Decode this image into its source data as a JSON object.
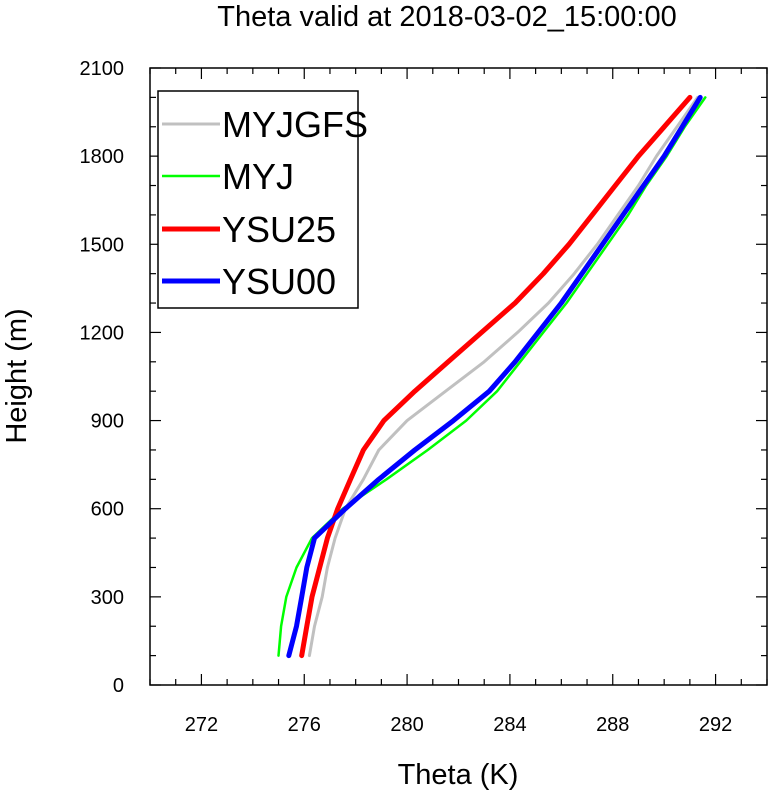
{
  "chart_data": {
    "type": "line",
    "title": "Theta valid at 2018-03-02_15:00:00",
    "xlabel": "Theta (K)",
    "ylabel": "Height (m)",
    "xlim": [
      270,
      294
    ],
    "ylim": [
      0,
      2100
    ],
    "xticks": [
      272,
      276,
      280,
      284,
      288,
      292
    ],
    "yticks": [
      0,
      300,
      600,
      900,
      1200,
      1500,
      1800,
      2100
    ],
    "legend_position": "top-left",
    "grid": false,
    "series": [
      {
        "name": "MYJGFS",
        "color": "#c0c0c0",
        "points": [
          [
            276.2,
            100
          ],
          [
            276.4,
            200
          ],
          [
            276.7,
            300
          ],
          [
            276.9,
            400
          ],
          [
            277.2,
            500
          ],
          [
            277.6,
            600
          ],
          [
            278.3,
            700
          ],
          [
            278.9,
            800
          ],
          [
            280.0,
            900
          ],
          [
            281.5,
            1000
          ],
          [
            283.0,
            1100
          ],
          [
            284.3,
            1200
          ],
          [
            285.5,
            1300
          ],
          [
            286.5,
            1400
          ],
          [
            287.4,
            1500
          ],
          [
            288.2,
            1600
          ],
          [
            289.0,
            1700
          ],
          [
            289.7,
            1800
          ],
          [
            290.5,
            1900
          ],
          [
            291.3,
            2000
          ]
        ]
      },
      {
        "name": "MYJ",
        "color": "#00ff00",
        "points": [
          [
            275.0,
            100
          ],
          [
            275.1,
            200
          ],
          [
            275.3,
            300
          ],
          [
            275.7,
            400
          ],
          [
            276.3,
            500
          ],
          [
            277.5,
            600
          ],
          [
            279.2,
            700
          ],
          [
            280.8,
            800
          ],
          [
            282.3,
            900
          ],
          [
            283.5,
            1000
          ],
          [
            284.4,
            1100
          ],
          [
            285.3,
            1200
          ],
          [
            286.2,
            1300
          ],
          [
            287.0,
            1400
          ],
          [
            287.8,
            1500
          ],
          [
            288.6,
            1600
          ],
          [
            289.3,
            1700
          ],
          [
            290.1,
            1800
          ],
          [
            290.8,
            1900
          ],
          [
            291.6,
            2000
          ]
        ]
      },
      {
        "name": "YSU25",
        "color": "#ff0000",
        "points": [
          [
            275.9,
            100
          ],
          [
            276.1,
            200
          ],
          [
            276.3,
            300
          ],
          [
            276.6,
            400
          ],
          [
            276.9,
            500
          ],
          [
            277.3,
            600
          ],
          [
            277.8,
            700
          ],
          [
            278.3,
            800
          ],
          [
            279.1,
            900
          ],
          [
            280.3,
            1000
          ],
          [
            281.6,
            1100
          ],
          [
            282.9,
            1200
          ],
          [
            284.2,
            1300
          ],
          [
            285.3,
            1400
          ],
          [
            286.3,
            1500
          ],
          [
            287.2,
            1600
          ],
          [
            288.1,
            1700
          ],
          [
            289.0,
            1800
          ],
          [
            290.0,
            1900
          ],
          [
            291.0,
            2000
          ]
        ]
      },
      {
        "name": "YSU00",
        "color": "#0000ff",
        "points": [
          [
            275.4,
            100
          ],
          [
            275.7,
            200
          ],
          [
            275.9,
            300
          ],
          [
            276.1,
            400
          ],
          [
            276.4,
            500
          ],
          [
            277.6,
            600
          ],
          [
            278.9,
            700
          ],
          [
            280.3,
            800
          ],
          [
            281.8,
            900
          ],
          [
            283.2,
            1000
          ],
          [
            284.2,
            1100
          ],
          [
            285.1,
            1200
          ],
          [
            286.0,
            1300
          ],
          [
            286.8,
            1400
          ],
          [
            287.6,
            1500
          ],
          [
            288.4,
            1600
          ],
          [
            289.2,
            1700
          ],
          [
            290.0,
            1800
          ],
          [
            290.7,
            1900
          ],
          [
            291.4,
            2000
          ]
        ]
      }
    ]
  }
}
